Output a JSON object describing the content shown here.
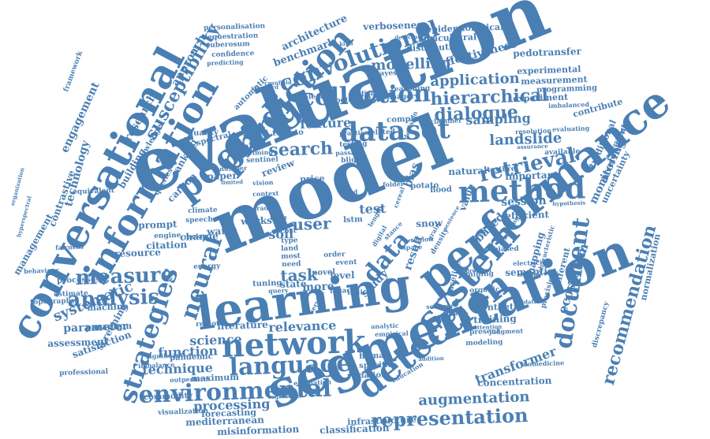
{
  "cloud": {
    "color": "#4a7fb4",
    "background": "#ffffff",
    "words": [
      "evaluation",
      "model",
      "learning",
      "segmentation",
      "performance",
      "conversational",
      "information",
      "system",
      "detection",
      "network",
      "pooling",
      "prediction",
      "dataset",
      "method",
      "collection",
      "convolutional",
      "language",
      "neural",
      "strategies",
      "environmental",
      "measure",
      "data",
      "analysis",
      "document",
      "retrieval",
      "hierarchical",
      "representation",
      "recommendation",
      "search",
      "dialogue",
      "susceptibility",
      "augmentation",
      "systematic",
      "user",
      "task",
      "relevance",
      "feature",
      "modelling",
      "application",
      "landslide",
      "sampling",
      "technique",
      "function",
      "science",
      "transformer",
      "processing",
      "ecosystem",
      "monitoring",
      "engagement",
      "technology",
      "research",
      "approach",
      "benchmark",
      "architecture",
      "effectiveness",
      "verboseness",
      "epidemiological",
      "agricultural",
      "distribution",
      "pedotransfer",
      "experimental",
      "measurement",
      "programming",
      "experiment",
      "bias",
      "soil",
      "water",
      "review",
      "quality",
      "spectral",
      "ranking",
      "building",
      "knowledge",
      "paper",
      "carbon",
      "queries",
      "management",
      "contrastive",
      "equivalent",
      "framework",
      "personalisation",
      "sequestration",
      "tuberosum",
      "confidence",
      "predicting",
      "bayesian",
      "reasoning",
      "disease",
      "imagery",
      "selection",
      "potential",
      "classifier",
      "complex",
      "spatial",
      "tomato",
      "sentinel",
      "priming",
      "automatic",
      "standard",
      "cranfield",
      "test",
      "lstm",
      "fixed",
      "potato",
      "flood",
      "natural",
      "texture",
      "important",
      "session",
      "efficient",
      "value",
      "based",
      "result",
      "study",
      "snow",
      "change",
      "works",
      "prompt",
      "climate",
      "speech",
      "engine",
      "citation",
      "resource",
      "ranker",
      "radar",
      "cost",
      "type",
      "land",
      "most",
      "need",
      "order",
      "event",
      "level",
      "novel",
      "state",
      "more",
      "indice",
      "legacy",
      "tuning",
      "query",
      "energy",
      "machine",
      "processes",
      "estimate",
      "topography",
      "behaviour",
      "organization",
      "hyperspectral",
      "fairness",
      "paradigm",
      "parameter",
      "assessment",
      "satisfaction",
      "screening",
      "professional",
      "imbalance",
      "significant",
      "pandemic",
      "maximum",
      "outperform",
      "commodity",
      "visualization",
      "forecasting",
      "mediterranean",
      "misinformation",
      "classification",
      "infrastructure",
      "estimation",
      "regression",
      "human",
      "specific",
      "variation",
      "empirical",
      "education",
      "addition",
      "concentration",
      "biomedicine",
      "modeling",
      "present",
      "judgment",
      "training",
      "synthetic",
      "validation",
      "precision",
      "different",
      "mapping",
      "semantic",
      "organic",
      "baseline",
      "mining",
      "electricity",
      "characteristic",
      "multiple",
      "problem",
      "density",
      "normalization",
      "uncertainty",
      "development",
      "traditional",
      "contribute",
      "evaluating",
      "imbalanced",
      "available",
      "resolution",
      "assurance",
      "hypothesis",
      "discrepancy",
      "understanding",
      "literature",
      "remote",
      "analytic",
      "schema",
      "service",
      "software",
      "attention",
      "testing",
      "biased",
      "sensing",
      "detectable",
      "kind",
      "related",
      "passage",
      "blight",
      "decision",
      "region",
      "space",
      "grain",
      "stance",
      "sentence",
      "practice",
      "vision",
      "context",
      "price",
      "limited",
      "number",
      "digital",
      "cereal",
      "length",
      "folder",
      "term"
    ]
  }
}
